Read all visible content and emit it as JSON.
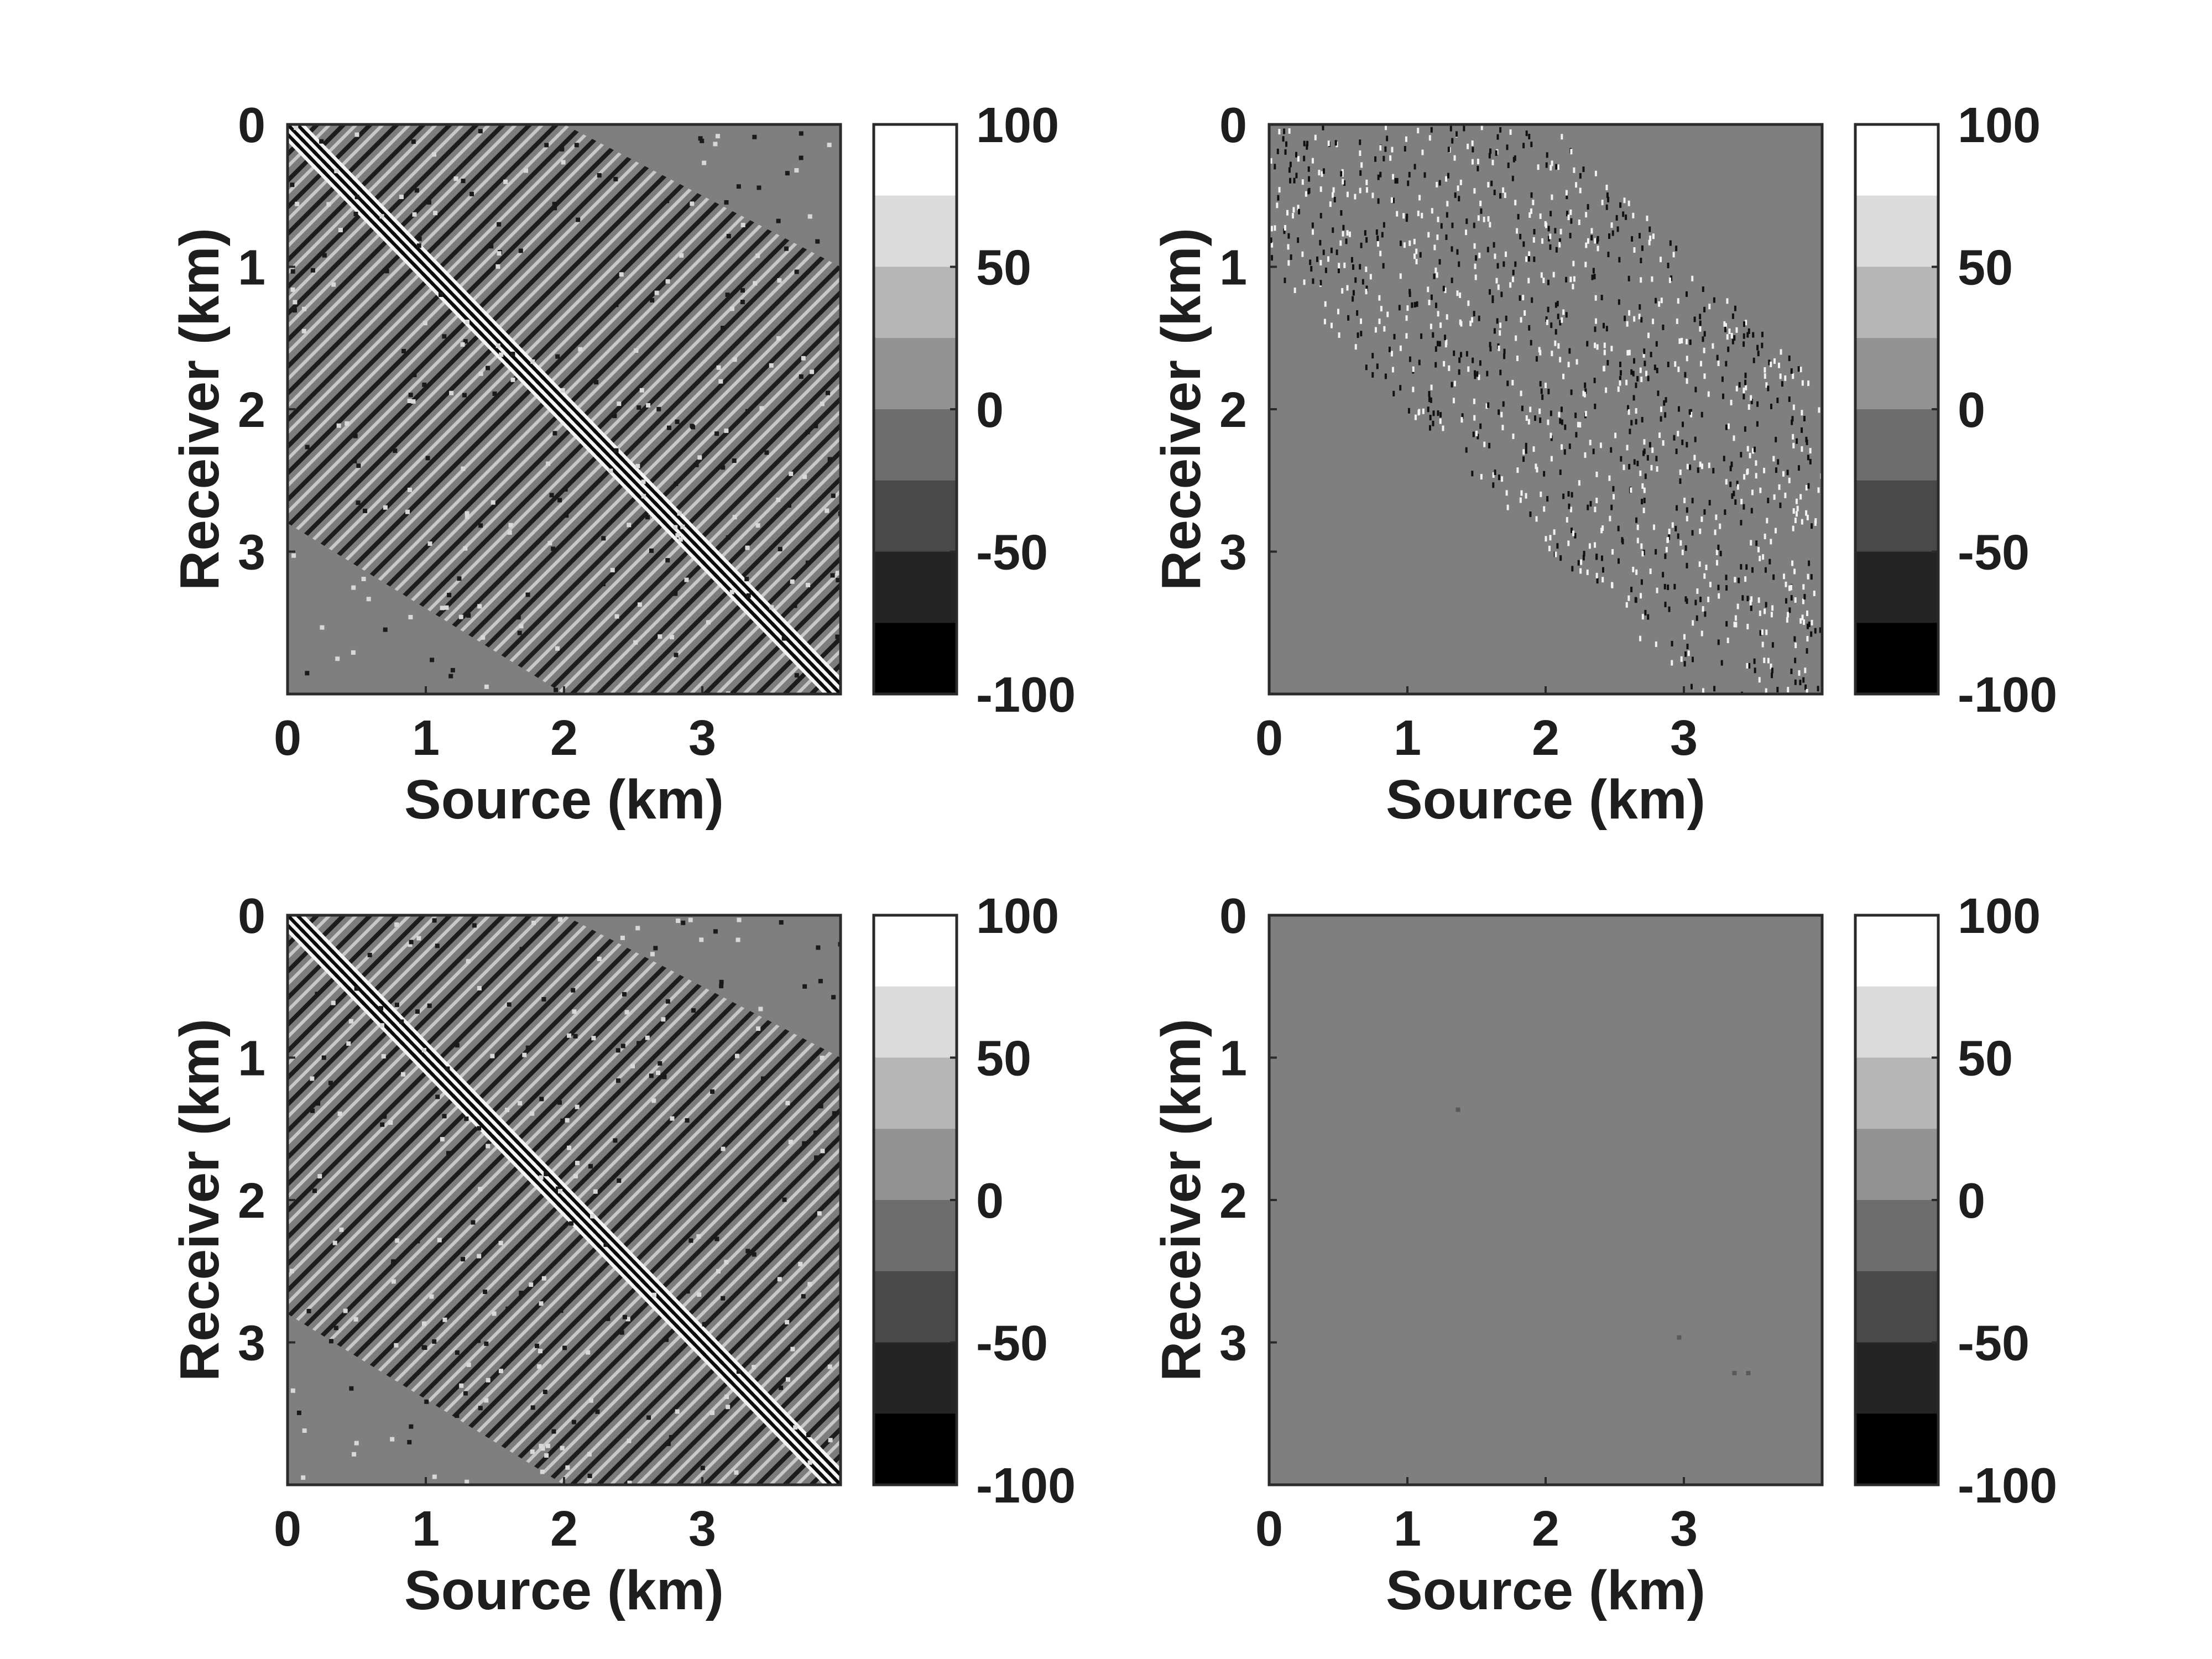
{
  "chart_data": [
    {
      "type": "heatmap",
      "xlabel": "Source (km)",
      "ylabel": "Receiver (km)",
      "x_ticks": [
        "0",
        "1",
        "2",
        "3"
      ],
      "y_ticks": [
        "0",
        "1",
        "2",
        "3"
      ],
      "xlim": [
        0,
        4
      ],
      "ylim": [
        0,
        4
      ],
      "colorbar": {
        "ticks": [
          "100",
          "50",
          "0",
          "-50",
          "-100"
        ],
        "range": [
          -100,
          100
        ],
        "levels": 8
      },
      "colormap": "gray",
      "pattern": "dense"
    },
    {
      "type": "heatmap",
      "xlabel": "Source (km)",
      "ylabel": "Receiver (km)",
      "x_ticks": [
        "0",
        "1",
        "2",
        "3"
      ],
      "y_ticks": [
        "0",
        "1",
        "2",
        "3"
      ],
      "xlim": [
        0,
        4
      ],
      "ylim": [
        0,
        4
      ],
      "colorbar": {
        "ticks": [
          "100",
          "50",
          "0",
          "-50",
          "-100"
        ],
        "range": [
          -100,
          100
        ],
        "levels": 8
      },
      "colormap": "gray",
      "pattern": "sparse"
    },
    {
      "type": "heatmap",
      "xlabel": "Source (km)",
      "ylabel": "Receiver (km)",
      "x_ticks": [
        "0",
        "1",
        "2",
        "3"
      ],
      "y_ticks": [
        "0",
        "1",
        "2",
        "3"
      ],
      "xlim": [
        0,
        4
      ],
      "ylim": [
        0,
        4
      ],
      "colorbar": {
        "ticks": [
          "100",
          "50",
          "0",
          "-50",
          "-100"
        ],
        "range": [
          -100,
          100
        ],
        "levels": 8
      },
      "colormap": "gray",
      "pattern": "dense"
    },
    {
      "type": "heatmap",
      "xlabel": "Source (km)",
      "ylabel": "Receiver (km)",
      "x_ticks": [
        "0",
        "1",
        "2",
        "3"
      ],
      "y_ticks": [
        "0",
        "1",
        "2",
        "3"
      ],
      "xlim": [
        0,
        4
      ],
      "ylim": [
        0,
        4
      ],
      "colorbar": {
        "ticks": [
          "100",
          "50",
          "0",
          "-50",
          "-100"
        ],
        "range": [
          -100,
          100
        ],
        "levels": 8
      },
      "colormap": "gray",
      "pattern": "near-zero",
      "outliers": [
        [
          1.35,
          1.35
        ],
        [
          2.95,
          2.95
        ],
        [
          3.35,
          3.2
        ],
        [
          3.45,
          3.2
        ]
      ]
    }
  ]
}
